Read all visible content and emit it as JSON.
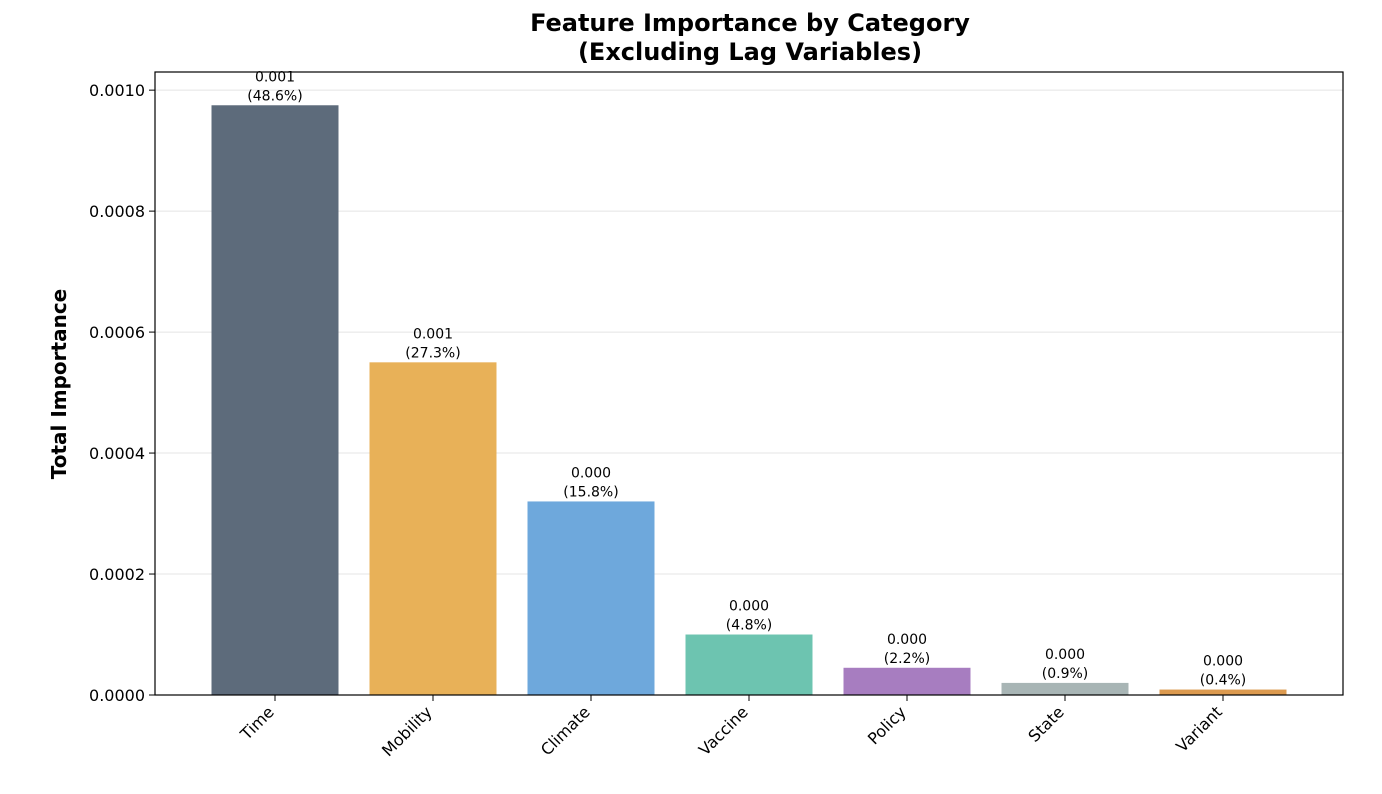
{
  "chart_data": {
    "type": "bar",
    "title": "Feature Importance by Category",
    "subtitle": "(Excluding Lag Variables)",
    "xlabel": "",
    "ylabel": "Total Importance",
    "ylim": [
      0,
      0.00103
    ],
    "yticks": [
      "0.0000",
      "0.0002",
      "0.0004",
      "0.0006",
      "0.0008",
      "0.0010"
    ],
    "ytick_values": [
      0,
      0.0002,
      0.0004,
      0.0006,
      0.0008,
      0.001
    ],
    "grid": "horizontal",
    "categories": [
      "Time",
      "Mobility",
      "Climate",
      "Vaccine",
      "Policy",
      "State",
      "Variant"
    ],
    "values": [
      0.000975,
      0.00055,
      0.00032,
      0.0001,
      4.5e-05,
      2e-05,
      9e-06
    ],
    "value_labels": [
      "0.001",
      "0.001",
      "0.000",
      "0.000",
      "0.000",
      "0.000",
      "0.000"
    ],
    "percent_labels": [
      "(48.6%)",
      "(27.3%)",
      "(15.8%)",
      "(4.8%)",
      "(2.2%)",
      "(0.9%)",
      "(0.4%)"
    ],
    "colors": [
      "#5d6b7b",
      "#e8b158",
      "#6ea8dc",
      "#6dc4b0",
      "#a77dc0",
      "#a8b5b5",
      "#dc9a4f"
    ]
  }
}
